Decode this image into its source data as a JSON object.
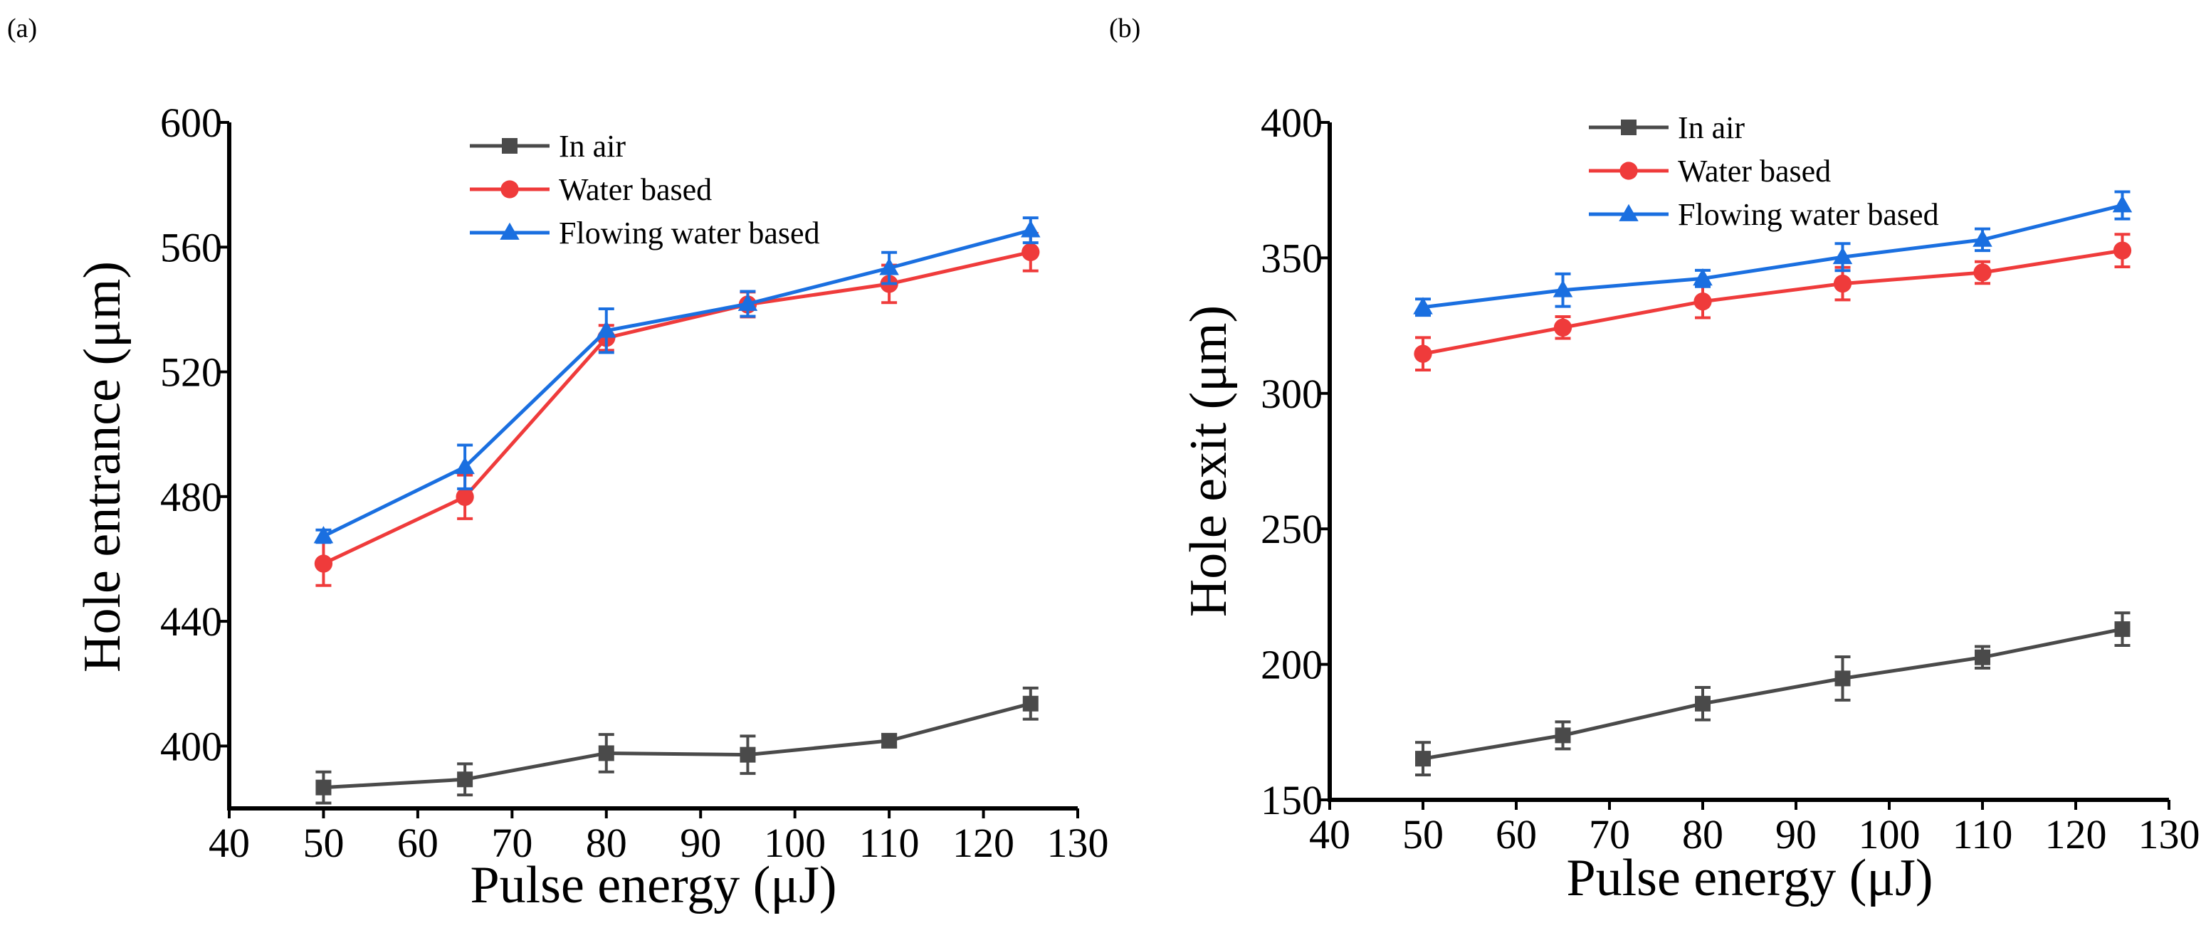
{
  "chart_data": [
    {
      "type": "line",
      "panel_label": "(a)",
      "xlabel": "Pulse energy (μJ)",
      "ylabel": "Hole entrance (μm)",
      "xlim": [
        40,
        130
      ],
      "ylim": [
        380,
        600
      ],
      "xticks": [
        40,
        50,
        60,
        70,
        80,
        90,
        100,
        110,
        120,
        130
      ],
      "yticks": [
        400,
        440,
        480,
        520,
        560,
        600
      ],
      "legend_position": "top-center",
      "x": [
        50,
        65,
        80,
        95,
        110,
        125
      ],
      "series": [
        {
          "name": "In air",
          "color": "#4a4a4a",
          "marker": "square",
          "values": [
            386.7,
            389.3,
            397.7,
            397.2,
            401.7,
            413.6
          ],
          "errors": [
            5,
            5,
            6,
            6,
            2,
            5
          ]
        },
        {
          "name": "Water based",
          "color": "#ef3b3b",
          "marker": "circle",
          "values": [
            458.5,
            479.9,
            530.9,
            541.6,
            548.2,
            558.4
          ],
          "errors": [
            7,
            7,
            4,
            4,
            6,
            6
          ]
        },
        {
          "name": "Flowing water based",
          "color": "#1a6fe0",
          "marker": "triangle",
          "values": [
            467.3,
            489.5,
            533.2,
            541.8,
            553.3,
            565.4
          ],
          "errors": [
            2,
            7,
            7,
            4,
            5,
            4
          ]
        }
      ]
    },
    {
      "type": "line",
      "panel_label": "(b)",
      "xlabel": "Pulse energy (μJ)",
      "ylabel": "Hole exit (μm)",
      "xlim": [
        40,
        130
      ],
      "ylim": [
        150,
        400
      ],
      "xticks": [
        40,
        50,
        60,
        70,
        80,
        90,
        100,
        110,
        120,
        130
      ],
      "yticks": [
        150,
        200,
        250,
        300,
        350,
        400
      ],
      "legend_position": "top-center",
      "x": [
        50,
        65,
        80,
        95,
        110,
        125
      ],
      "series": [
        {
          "name": "In air",
          "color": "#4a4a4a",
          "marker": "square",
          "values": [
            165.2,
            173.8,
            185.5,
            194.8,
            202.6,
            213.0
          ],
          "errors": [
            6,
            5,
            6,
            8,
            4,
            6
          ]
        },
        {
          "name": "Water based",
          "color": "#ef3b3b",
          "marker": "circle",
          "values": [
            314.6,
            324.3,
            333.9,
            340.5,
            344.6,
            352.7
          ],
          "errors": [
            6,
            4,
            6,
            6,
            4,
            6
          ]
        },
        {
          "name": "Flowing water based",
          "color": "#1a6fe0",
          "marker": "triangle",
          "values": [
            331.8,
            338.1,
            342.4,
            350.3,
            356.7,
            369.4
          ],
          "errors": [
            3,
            6,
            3,
            5,
            4,
            5
          ]
        }
      ]
    }
  ]
}
